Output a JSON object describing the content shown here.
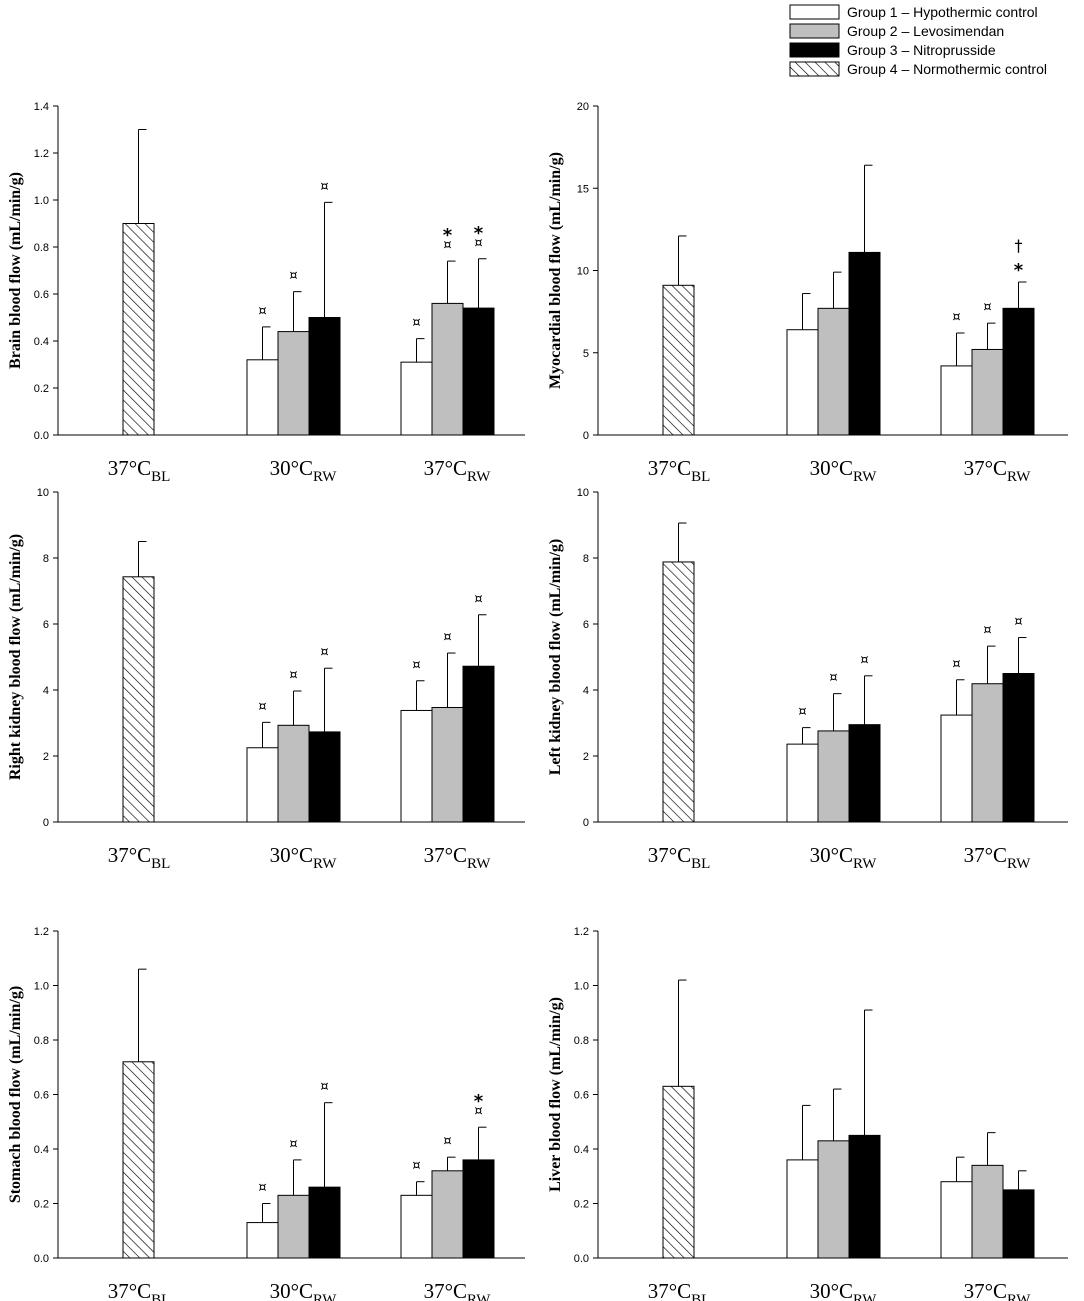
{
  "legend": {
    "items": [
      {
        "label": "Group 1 – Hypothermic control",
        "style": "white"
      },
      {
        "label": "Group 2 – Levosimendan",
        "style": "gray"
      },
      {
        "label": "Group 3 – Nitroprusside",
        "style": "black"
      },
      {
        "label": "Group 4 – Normothermic control",
        "style": "hatch"
      }
    ]
  },
  "colors": {
    "white": "#ffffff",
    "gray": "#bfbfbf",
    "black": "#000000",
    "axis": "#000000"
  },
  "chart_data": [
    {
      "type": "bar",
      "ylabel": "Brain blood flow (mL/min/g)",
      "ylim": [
        0,
        1.4
      ],
      "yticks": [
        0.0,
        0.2,
        0.4,
        0.6,
        0.8,
        1.0,
        1.2,
        1.4
      ],
      "tick_decimals": 1,
      "categories": [
        {
          "main": "37°C",
          "sub": "BL"
        },
        {
          "main": "30°C",
          "sub": "RW"
        },
        {
          "main": "37°C",
          "sub": "RW"
        }
      ],
      "bars": [
        {
          "cat": 0,
          "group": 4,
          "value": 0.9,
          "error": 0.4,
          "marks": []
        },
        {
          "cat": 1,
          "group": 1,
          "value": 0.32,
          "error": 0.14,
          "marks": [
            "¤"
          ]
        },
        {
          "cat": 1,
          "group": 2,
          "value": 0.44,
          "error": 0.17,
          "marks": [
            "¤"
          ]
        },
        {
          "cat": 1,
          "group": 3,
          "value": 0.5,
          "error": 0.49,
          "marks": [
            "¤"
          ]
        },
        {
          "cat": 2,
          "group": 1,
          "value": 0.31,
          "error": 0.1,
          "marks": [
            "¤"
          ]
        },
        {
          "cat": 2,
          "group": 2,
          "value": 0.56,
          "error": 0.18,
          "marks": [
            "¤",
            "*"
          ]
        },
        {
          "cat": 2,
          "group": 3,
          "value": 0.54,
          "error": 0.21,
          "marks": [
            "¤",
            "*"
          ]
        }
      ]
    },
    {
      "type": "bar",
      "ylabel": "Myocardial blood flow (mL/min/g)",
      "ylim": [
        0,
        20
      ],
      "yticks": [
        0,
        5,
        10,
        15,
        20
      ],
      "tick_decimals": 0,
      "categories": [
        {
          "main": "37°C",
          "sub": "BL"
        },
        {
          "main": "30°C",
          "sub": "RW"
        },
        {
          "main": "37°C",
          "sub": "RW"
        }
      ],
      "bars": [
        {
          "cat": 0,
          "group": 4,
          "value": 9.1,
          "error": 3.0,
          "marks": []
        },
        {
          "cat": 1,
          "group": 1,
          "value": 6.4,
          "error": 2.2,
          "marks": []
        },
        {
          "cat": 1,
          "group": 2,
          "value": 7.7,
          "error": 2.2,
          "marks": []
        },
        {
          "cat": 1,
          "group": 3,
          "value": 11.1,
          "error": 5.3,
          "marks": []
        },
        {
          "cat": 2,
          "group": 1,
          "value": 4.2,
          "error": 2.0,
          "marks": [
            "¤"
          ]
        },
        {
          "cat": 2,
          "group": 2,
          "value": 5.2,
          "error": 1.6,
          "marks": [
            "¤"
          ]
        },
        {
          "cat": 2,
          "group": 3,
          "value": 7.7,
          "error": 1.6,
          "marks": [
            "*",
            "†"
          ]
        }
      ]
    },
    {
      "type": "bar",
      "ylabel": "Right kidney blood flow (mL/min/g)",
      "ylim": [
        0,
        10
      ],
      "yticks": [
        0,
        2,
        4,
        6,
        8,
        10
      ],
      "tick_decimals": 0,
      "categories": [
        {
          "main": "37°C",
          "sub": "BL"
        },
        {
          "main": "30°C",
          "sub": "RW"
        },
        {
          "main": "37°C",
          "sub": "RW"
        }
      ],
      "bars": [
        {
          "cat": 0,
          "group": 4,
          "value": 7.43,
          "error": 1.07,
          "marks": []
        },
        {
          "cat": 1,
          "group": 1,
          "value": 2.25,
          "error": 0.77,
          "marks": [
            "¤"
          ]
        },
        {
          "cat": 1,
          "group": 2,
          "value": 2.93,
          "error": 1.04,
          "marks": [
            "¤"
          ]
        },
        {
          "cat": 1,
          "group": 3,
          "value": 2.73,
          "error": 1.93,
          "marks": [
            "¤"
          ]
        },
        {
          "cat": 2,
          "group": 1,
          "value": 3.38,
          "error": 0.9,
          "marks": [
            "¤"
          ]
        },
        {
          "cat": 2,
          "group": 2,
          "value": 3.47,
          "error": 1.65,
          "marks": [
            "¤"
          ]
        },
        {
          "cat": 2,
          "group": 3,
          "value": 4.72,
          "error": 1.56,
          "marks": [
            "¤"
          ]
        }
      ]
    },
    {
      "type": "bar",
      "ylabel": "Left kidney blood flow (mL/min/g)",
      "ylim": [
        0,
        10
      ],
      "yticks": [
        0,
        2,
        4,
        6,
        8,
        10
      ],
      "tick_decimals": 0,
      "categories": [
        {
          "main": "37°C",
          "sub": "BL"
        },
        {
          "main": "30°C",
          "sub": "RW"
        },
        {
          "main": "37°C",
          "sub": "RW"
        }
      ],
      "bars": [
        {
          "cat": 0,
          "group": 4,
          "value": 7.88,
          "error": 1.18,
          "marks": []
        },
        {
          "cat": 1,
          "group": 1,
          "value": 2.36,
          "error": 0.5,
          "marks": [
            "¤"
          ]
        },
        {
          "cat": 1,
          "group": 2,
          "value": 2.76,
          "error": 1.13,
          "marks": [
            "¤"
          ]
        },
        {
          "cat": 1,
          "group": 3,
          "value": 2.95,
          "error": 1.48,
          "marks": [
            "¤"
          ]
        },
        {
          "cat": 2,
          "group": 1,
          "value": 3.24,
          "error": 1.07,
          "marks": [
            "¤"
          ]
        },
        {
          "cat": 2,
          "group": 2,
          "value": 4.19,
          "error": 1.14,
          "marks": [
            "¤"
          ]
        },
        {
          "cat": 2,
          "group": 3,
          "value": 4.5,
          "error": 1.09,
          "marks": [
            "¤"
          ]
        }
      ]
    },
    {
      "type": "bar",
      "ylabel": "Stomach blood flow (mL/min/g)",
      "ylim": [
        0,
        1.2
      ],
      "yticks": [
        0.0,
        0.2,
        0.4,
        0.6,
        0.8,
        1.0,
        1.2
      ],
      "tick_decimals": 1,
      "categories": [
        {
          "main": "37°C",
          "sub": "BL"
        },
        {
          "main": "30°C",
          "sub": "RW"
        },
        {
          "main": "37°C",
          "sub": "RW"
        }
      ],
      "bars": [
        {
          "cat": 0,
          "group": 4,
          "value": 0.72,
          "error": 0.34,
          "marks": []
        },
        {
          "cat": 1,
          "group": 1,
          "value": 0.13,
          "error": 0.07,
          "marks": [
            "¤"
          ]
        },
        {
          "cat": 1,
          "group": 2,
          "value": 0.23,
          "error": 0.13,
          "marks": [
            "¤"
          ]
        },
        {
          "cat": 1,
          "group": 3,
          "value": 0.26,
          "error": 0.31,
          "marks": [
            "¤"
          ]
        },
        {
          "cat": 2,
          "group": 1,
          "value": 0.23,
          "error": 0.05,
          "marks": [
            "¤"
          ]
        },
        {
          "cat": 2,
          "group": 2,
          "value": 0.32,
          "error": 0.05,
          "marks": [
            "¤"
          ]
        },
        {
          "cat": 2,
          "group": 3,
          "value": 0.36,
          "error": 0.12,
          "marks": [
            "¤",
            "*"
          ]
        }
      ]
    },
    {
      "type": "bar",
      "ylabel": "Liver blood flow (mL/min/g)",
      "ylim": [
        0,
        1.2
      ],
      "yticks": [
        0.0,
        0.2,
        0.4,
        0.6,
        0.8,
        1.0,
        1.2
      ],
      "tick_decimals": 1,
      "categories": [
        {
          "main": "37°C",
          "sub": "BL"
        },
        {
          "main": "30°C",
          "sub": "RW"
        },
        {
          "main": "37°C",
          "sub": "RW"
        }
      ],
      "bars": [
        {
          "cat": 0,
          "group": 4,
          "value": 0.63,
          "error": 0.39,
          "marks": []
        },
        {
          "cat": 1,
          "group": 1,
          "value": 0.36,
          "error": 0.2,
          "marks": []
        },
        {
          "cat": 1,
          "group": 2,
          "value": 0.43,
          "error": 0.19,
          "marks": []
        },
        {
          "cat": 1,
          "group": 3,
          "value": 0.45,
          "error": 0.46,
          "marks": []
        },
        {
          "cat": 2,
          "group": 1,
          "value": 0.28,
          "error": 0.09,
          "marks": []
        },
        {
          "cat": 2,
          "group": 2,
          "value": 0.34,
          "error": 0.12,
          "marks": []
        },
        {
          "cat": 2,
          "group": 3,
          "value": 0.25,
          "error": 0.07,
          "marks": []
        }
      ]
    }
  ]
}
